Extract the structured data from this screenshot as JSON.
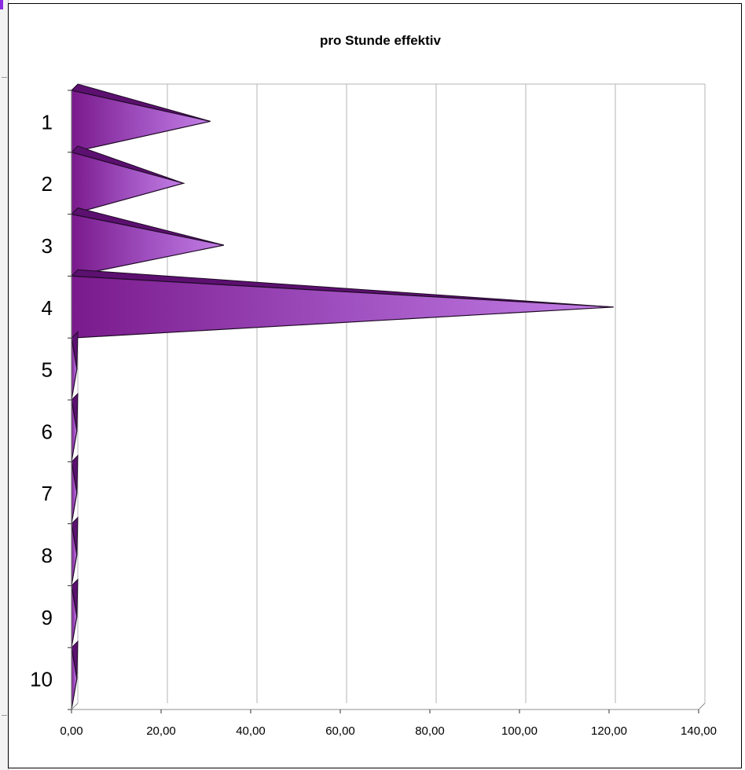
{
  "chart_data": {
    "type": "bar",
    "subtype": "horizontal cone/pyramid 3D",
    "title": "pro Stunde effektiv",
    "xlabel": "",
    "ylabel": "",
    "categories": [
      "1",
      "2",
      "3",
      "4",
      "5",
      "6",
      "7",
      "8",
      "9",
      "10"
    ],
    "values": [
      31,
      25,
      34,
      121,
      1.2,
      1.2,
      1.2,
      1.2,
      1.2,
      1.2
    ],
    "xlim": [
      0,
      140
    ],
    "x_ticks": [
      "0,00",
      "20,00",
      "40,00",
      "60,00",
      "80,00",
      "100,00",
      "120,00",
      "140,00"
    ],
    "grid": true,
    "legend": "none",
    "colors": {
      "bar_light": "#c37fe6",
      "bar_mid": "#9f4fbf",
      "bar_dark": "#7a1a8c",
      "bar_edge": "#1f0a26",
      "grid": "#b5b5b5",
      "axis": "#8c8c8c"
    }
  }
}
